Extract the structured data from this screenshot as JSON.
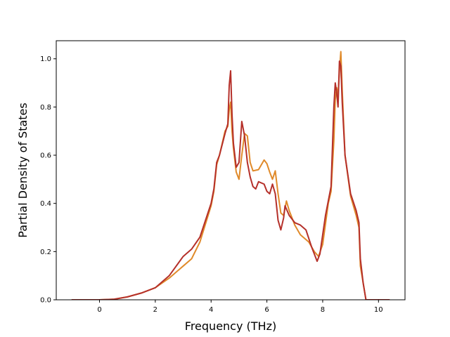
{
  "chart_data": {
    "type": "line",
    "title": "",
    "xlabel": "Frequency (THz)",
    "ylabel": "Partial Density of States",
    "xlim": [
      -1.55,
      10.95
    ],
    "ylim": [
      0.0,
      1.075
    ],
    "xticks": [
      0,
      2,
      4,
      6,
      8,
      10
    ],
    "yticks": [
      0.0,
      0.2,
      0.4,
      0.6,
      0.8,
      1.0
    ],
    "xtick_labels": [
      "0",
      "2",
      "4",
      "6",
      "8",
      "10"
    ],
    "ytick_labels": [
      "0.0",
      "0.2",
      "0.4",
      "0.6",
      "0.8",
      "1.0"
    ],
    "grid": false,
    "legend": "none",
    "series": [
      {
        "color": "#e08a2a",
        "points": [
          [
            -1.0,
            0.0
          ],
          [
            0.0,
            0.0
          ],
          [
            0.5,
            0.002
          ],
          [
            1.0,
            0.012
          ],
          [
            1.5,
            0.028
          ],
          [
            2.0,
            0.05
          ],
          [
            2.5,
            0.09
          ],
          [
            3.0,
            0.14
          ],
          [
            3.3,
            0.17
          ],
          [
            3.6,
            0.24
          ],
          [
            4.0,
            0.39
          ],
          [
            4.1,
            0.45
          ],
          [
            4.2,
            0.56
          ],
          [
            4.3,
            0.6
          ],
          [
            4.5,
            0.7
          ],
          [
            4.6,
            0.72
          ],
          [
            4.65,
            0.79
          ],
          [
            4.7,
            0.82
          ],
          [
            4.75,
            0.7
          ],
          [
            4.8,
            0.63
          ],
          [
            4.9,
            0.53
          ],
          [
            5.0,
            0.5
          ],
          [
            5.1,
            0.6
          ],
          [
            5.2,
            0.69
          ],
          [
            5.3,
            0.68
          ],
          [
            5.4,
            0.57
          ],
          [
            5.5,
            0.535
          ],
          [
            5.7,
            0.54
          ],
          [
            5.9,
            0.58
          ],
          [
            6.0,
            0.565
          ],
          [
            6.1,
            0.53
          ],
          [
            6.2,
            0.5
          ],
          [
            6.3,
            0.535
          ],
          [
            6.4,
            0.44
          ],
          [
            6.5,
            0.36
          ],
          [
            6.6,
            0.35
          ],
          [
            6.7,
            0.41
          ],
          [
            6.8,
            0.37
          ],
          [
            7.0,
            0.31
          ],
          [
            7.2,
            0.27
          ],
          [
            7.5,
            0.24
          ],
          [
            7.7,
            0.2
          ],
          [
            7.85,
            0.18
          ],
          [
            8.0,
            0.23
          ],
          [
            8.2,
            0.4
          ],
          [
            8.3,
            0.45
          ],
          [
            8.4,
            0.66
          ],
          [
            8.45,
            0.83
          ],
          [
            8.5,
            0.88
          ],
          [
            8.55,
            0.85
          ],
          [
            8.6,
            0.95
          ],
          [
            8.65,
            1.03
          ],
          [
            8.7,
            0.87
          ],
          [
            8.8,
            0.6
          ],
          [
            9.0,
            0.43
          ],
          [
            9.2,
            0.35
          ],
          [
            9.3,
            0.3
          ],
          [
            9.35,
            0.14
          ],
          [
            9.45,
            0.07
          ],
          [
            9.55,
            0.0
          ],
          [
            10.4,
            0.0
          ]
        ]
      },
      {
        "color": "#b5302a",
        "points": [
          [
            -1.0,
            0.0
          ],
          [
            0.0,
            0.0
          ],
          [
            0.5,
            0.002
          ],
          [
            1.0,
            0.012
          ],
          [
            1.5,
            0.028
          ],
          [
            2.0,
            0.05
          ],
          [
            2.5,
            0.1
          ],
          [
            3.0,
            0.18
          ],
          [
            3.3,
            0.21
          ],
          [
            3.6,
            0.26
          ],
          [
            4.0,
            0.4
          ],
          [
            4.1,
            0.46
          ],
          [
            4.2,
            0.57
          ],
          [
            4.3,
            0.6
          ],
          [
            4.5,
            0.69
          ],
          [
            4.6,
            0.73
          ],
          [
            4.65,
            0.89
          ],
          [
            4.7,
            0.95
          ],
          [
            4.75,
            0.77
          ],
          [
            4.8,
            0.65
          ],
          [
            4.9,
            0.55
          ],
          [
            5.0,
            0.57
          ],
          [
            5.1,
            0.74
          ],
          [
            5.2,
            0.68
          ],
          [
            5.3,
            0.57
          ],
          [
            5.4,
            0.51
          ],
          [
            5.5,
            0.47
          ],
          [
            5.6,
            0.46
          ],
          [
            5.7,
            0.49
          ],
          [
            5.9,
            0.48
          ],
          [
            6.0,
            0.45
          ],
          [
            6.1,
            0.44
          ],
          [
            6.2,
            0.48
          ],
          [
            6.3,
            0.44
          ],
          [
            6.4,
            0.33
          ],
          [
            6.5,
            0.29
          ],
          [
            6.6,
            0.34
          ],
          [
            6.65,
            0.39
          ],
          [
            6.8,
            0.35
          ],
          [
            7.0,
            0.32
          ],
          [
            7.2,
            0.31
          ],
          [
            7.4,
            0.29
          ],
          [
            7.6,
            0.22
          ],
          [
            7.8,
            0.16
          ],
          [
            7.9,
            0.19
          ],
          [
            8.1,
            0.35
          ],
          [
            8.2,
            0.41
          ],
          [
            8.3,
            0.47
          ],
          [
            8.4,
            0.8
          ],
          [
            8.45,
            0.9
          ],
          [
            8.5,
            0.86
          ],
          [
            8.55,
            0.8
          ],
          [
            8.6,
            0.99
          ],
          [
            8.65,
            0.97
          ],
          [
            8.7,
            0.82
          ],
          [
            8.8,
            0.6
          ],
          [
            9.0,
            0.44
          ],
          [
            9.2,
            0.37
          ],
          [
            9.3,
            0.32
          ],
          [
            9.35,
            0.17
          ],
          [
            9.45,
            0.07
          ],
          [
            9.55,
            0.0
          ],
          [
            10.4,
            0.0
          ]
        ]
      }
    ]
  }
}
